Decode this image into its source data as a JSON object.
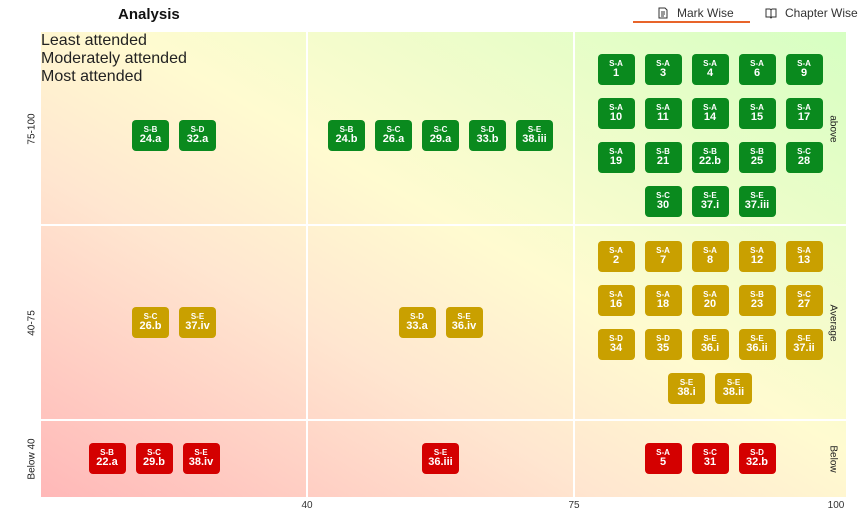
{
  "header": {
    "title": "Analysis",
    "tabs": [
      {
        "label": "Mark Wise",
        "icon": "document-icon",
        "active": true
      },
      {
        "label": "Chapter Wise",
        "icon": "book-icon",
        "active": false
      }
    ]
  },
  "colors": {
    "high": "#0a8a1e",
    "average": "#c9a000",
    "below": "#d40000",
    "accent": "#e8642a"
  },
  "columns": [
    "Least attended",
    "Moderately attended",
    "Most attended"
  ],
  "rows": [
    {
      "left_label": "75-100",
      "right_label": "above",
      "color": "g",
      "cells": [
        [
          [
            "S-B",
            "24.a"
          ],
          [
            "S-D",
            "32.a"
          ]
        ],
        [
          [
            "S-B",
            "24.b"
          ],
          [
            "S-C",
            "26.a"
          ],
          [
            "S-C",
            "29.a"
          ],
          [
            "S-D",
            "33.b"
          ],
          [
            "S-E",
            "38.iii"
          ]
        ],
        [
          [
            "S-A",
            "1"
          ],
          [
            "S-A",
            "3"
          ],
          [
            "S-A",
            "4"
          ],
          [
            "S-A",
            "6"
          ],
          [
            "S-A",
            "9"
          ],
          [
            "S-A",
            "10"
          ],
          [
            "S-A",
            "11"
          ],
          [
            "S-A",
            "14"
          ],
          [
            "S-A",
            "15"
          ],
          [
            "S-A",
            "17"
          ],
          [
            "S-A",
            "19"
          ],
          [
            "S-B",
            "21"
          ],
          [
            "S-B",
            "22.b"
          ],
          [
            "S-B",
            "25"
          ],
          [
            "S-C",
            "28"
          ],
          [
            "S-C",
            "30"
          ],
          [
            "S-E",
            "37.i"
          ],
          [
            "S-E",
            "37.iii"
          ]
        ]
      ]
    },
    {
      "left_label": "40-75",
      "right_label": "Average",
      "color": "y",
      "cells": [
        [
          [
            "S-C",
            "26.b"
          ],
          [
            "S-E",
            "37.iv"
          ]
        ],
        [
          [
            "S-D",
            "33.a"
          ],
          [
            "S-E",
            "36.iv"
          ]
        ],
        [
          [
            "S-A",
            "2"
          ],
          [
            "S-A",
            "7"
          ],
          [
            "S-A",
            "8"
          ],
          [
            "S-A",
            "12"
          ],
          [
            "S-A",
            "13"
          ],
          [
            "S-A",
            "16"
          ],
          [
            "S-A",
            "18"
          ],
          [
            "S-A",
            "20"
          ],
          [
            "S-B",
            "23"
          ],
          [
            "S-C",
            "27"
          ],
          [
            "S-D",
            "34"
          ],
          [
            "S-D",
            "35"
          ],
          [
            "S-E",
            "36.i"
          ],
          [
            "S-E",
            "36.ii"
          ],
          [
            "S-E",
            "37.ii"
          ],
          [
            "S-E",
            "38.i"
          ],
          [
            "S-E",
            "38.ii"
          ]
        ]
      ]
    },
    {
      "left_label": "Below 40",
      "right_label": "Below",
      "color": "r",
      "cells": [
        [
          [
            "S-B",
            "22.a"
          ],
          [
            "S-C",
            "29.b"
          ],
          [
            "S-E",
            "38.iv"
          ]
        ],
        [
          [
            "S-E",
            "36.iii"
          ]
        ],
        [
          [
            "S-A",
            "5"
          ],
          [
            "S-C",
            "31"
          ],
          [
            "S-D",
            "32.b"
          ]
        ]
      ]
    }
  ],
  "x_ticks": [
    "40",
    "75",
    "100"
  ]
}
